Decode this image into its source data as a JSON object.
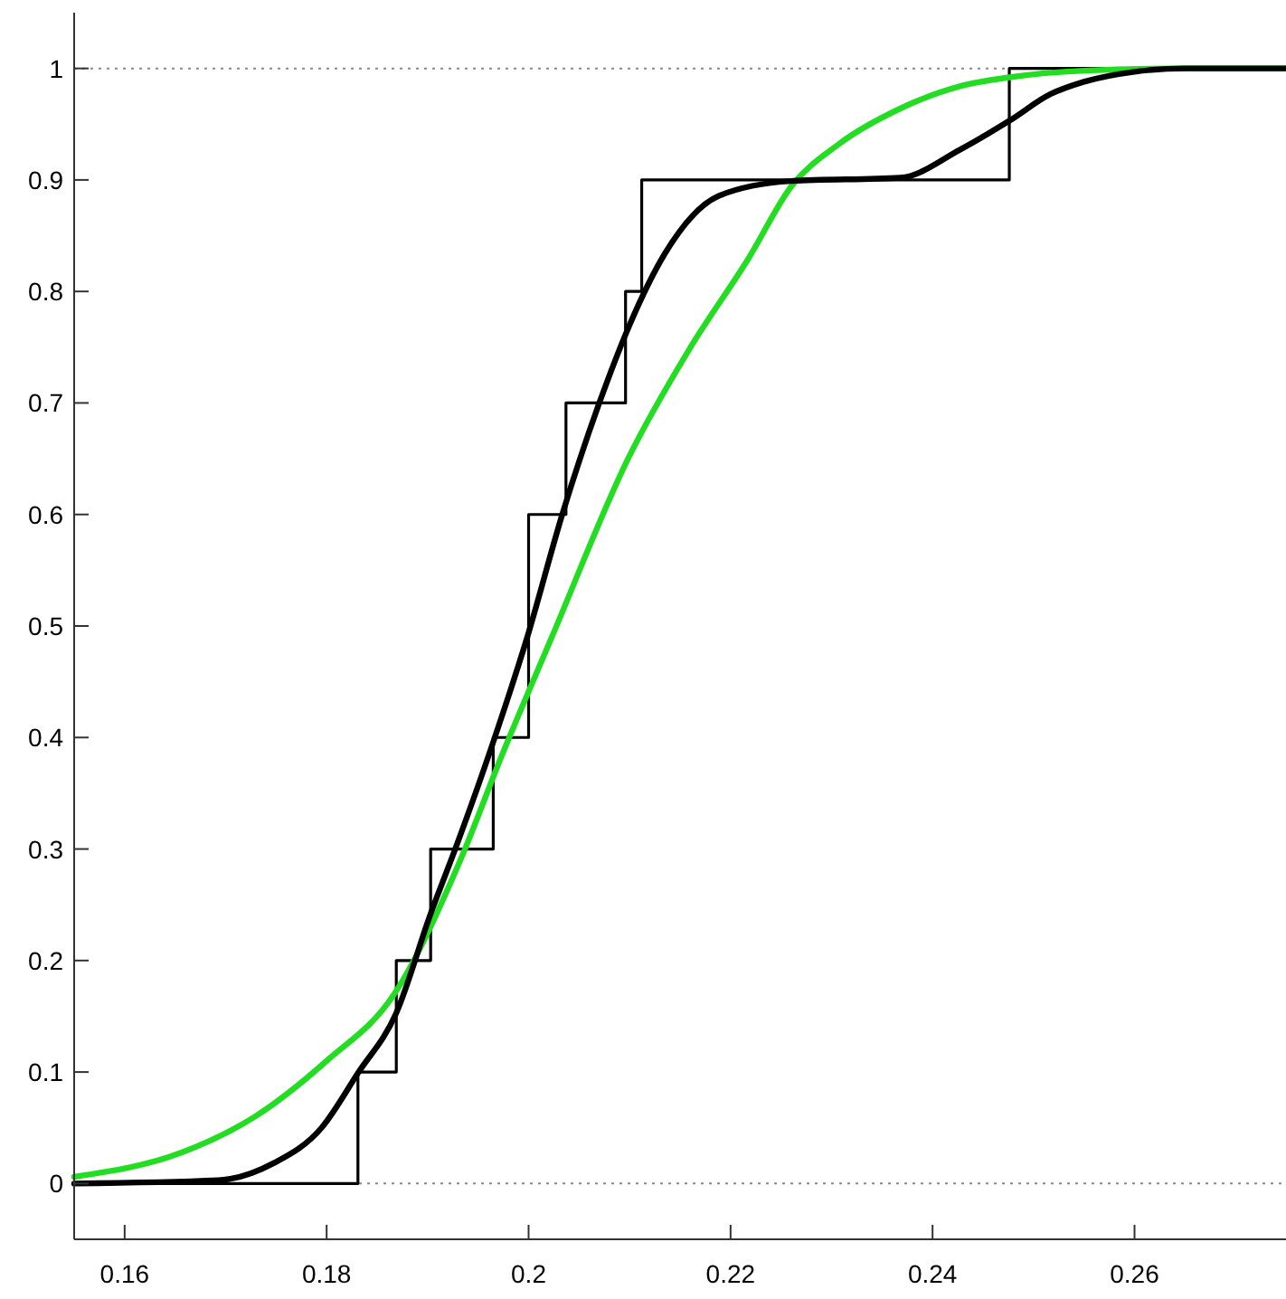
{
  "chart_data": {
    "type": "line",
    "xlim": [
      0.155,
      0.275
    ],
    "xticks": [
      0.16,
      0.18,
      0.2,
      0.22,
      0.24,
      0.26
    ],
    "ylim": [
      -0.05,
      1.05
    ],
    "yticks": [
      0,
      0.1,
      0.2,
      0.3,
      0.4,
      0.5,
      0.6,
      0.7,
      0.8,
      0.9,
      1
    ],
    "grid": false,
    "ref_lines": [
      {
        "axis": "y",
        "value": 0,
        "color": "#888888",
        "line_style": "dotted"
      },
      {
        "axis": "y",
        "value": 1,
        "color": "#888888",
        "line_style": "dotted"
      }
    ],
    "series": [
      {
        "type": "step",
        "color": "#000000",
        "x": [
          0.155,
          0.1831,
          0.1869,
          0.1903,
          0.1965,
          0.2,
          0.2037,
          0.2096,
          0.2112,
          0.2476,
          0.275
        ],
        "values": [
          0,
          0.1,
          0.2,
          0.3,
          0.4,
          0.6,
          0.7,
          0.8,
          0.9,
          1,
          1
        ]
      },
      {
        "color": "#22dd22",
        "x": [
          0.155,
          0.1657,
          0.1729,
          0.18,
          0.1867,
          0.1931,
          0.1974,
          0.2023,
          0.2099,
          0.2159,
          0.2218,
          0.226,
          0.2307,
          0.2368,
          0.2427,
          0.2476,
          0.255,
          0.265,
          0.275
        ],
        "values": [
          0.006,
          0.028,
          0.06,
          0.11,
          0.17,
          0.287,
          0.385,
          0.49,
          0.651,
          0.748,
          0.83,
          0.894,
          0.932,
          0.964,
          0.984,
          0.992,
          0.998,
          1,
          1
        ]
      },
      {
        "color": "#000000",
        "x": [
          0.155,
          0.1693,
          0.1747,
          0.1795,
          0.1831,
          0.1869,
          0.1903,
          0.1929,
          0.1965,
          0.1998,
          0.2034,
          0.207,
          0.21,
          0.2135,
          0.2189,
          0.226,
          0.2368,
          0.2427,
          0.2476,
          0.2517,
          0.255,
          0.26,
          0.265,
          0.275
        ],
        "values": [
          0,
          0.003,
          0.018,
          0.05,
          0.099,
          0.153,
          0.242,
          0.304,
          0.396,
          0.488,
          0.602,
          0.7,
          0.77,
          0.834,
          0.886,
          0.899,
          0.902,
          0.927,
          0.953,
          0.977,
          0.988,
          0.997,
          1,
          1
        ]
      }
    ]
  }
}
